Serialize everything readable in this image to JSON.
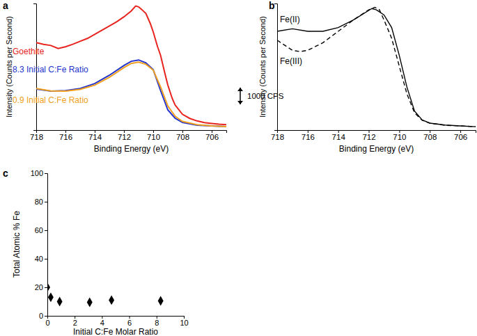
{
  "chart_data": [
    {
      "type": "line",
      "title": "a",
      "x_label": "Binding Energy (eV)",
      "y_label": "Intensity (Counts per Second)",
      "xlim": [
        718,
        705
      ],
      "xticks": [
        718,
        716,
        714,
        712,
        710,
        708,
        706
      ],
      "ylim": [
        0,
        7600
      ],
      "yticks": [],
      "tick_labels": "x",
      "annotations": [
        {
          "text": "1000 CPS",
          "value": 1000
        }
      ],
      "series": [
        {
          "name": "Goethite",
          "color": "#e8231e",
          "line_style": "solid",
          "x": [
            718,
            717.5,
            717,
            716.5,
            716,
            715.5,
            715,
            714.5,
            714,
            713.5,
            713,
            712.5,
            712,
            711.5,
            711.2,
            711,
            710.8,
            710.5,
            710.2,
            710,
            709.7,
            709.5,
            709.2,
            709,
            708.7,
            708.5,
            708,
            707.5,
            707,
            706.5,
            706,
            705.5,
            705
          ],
          "values": [
            5250,
            5150,
            5080,
            4900,
            5000,
            5150,
            5330,
            5500,
            5750,
            6000,
            6250,
            6500,
            6800,
            7150,
            7450,
            7400,
            7250,
            7000,
            6400,
            5900,
            5000,
            4500,
            3400,
            2700,
            1900,
            1500,
            950,
            700,
            550,
            450,
            400,
            350,
            320
          ]
        },
        {
          "name": "8.3 Initial C:Fe Ratio",
          "color": "#2233cc",
          "line_style": "solid",
          "x": [
            718,
            717,
            716,
            715,
            714,
            713,
            712,
            711.5,
            711,
            710.5,
            710,
            709.5,
            709,
            708.5,
            708,
            707,
            706,
            705
          ],
          "values": [
            2460,
            2335,
            2375,
            2500,
            2790,
            3290,
            3880,
            4130,
            4210,
            4040,
            3630,
            2380,
            1210,
            710,
            460,
            290,
            250,
            210
          ]
        },
        {
          "name": "0.9 Initial C:Fe Ratio",
          "color": "#f0a020",
          "line_style": "solid",
          "x": [
            718,
            717,
            716,
            715,
            714,
            713,
            712,
            711.5,
            711,
            710.5,
            710,
            709.5,
            709,
            708.5,
            708,
            707,
            706,
            705
          ],
          "values": [
            2500,
            2350,
            2340,
            2440,
            2700,
            3170,
            3750,
            4000,
            4080,
            3950,
            3600,
            2600,
            1450,
            830,
            520,
            320,
            250,
            210
          ]
        }
      ]
    },
    {
      "type": "line",
      "title": "b",
      "x_label": "Binding Energy (eV)",
      "y_label": "Intensity (Counts per Second)",
      "xlim": [
        718,
        705
      ],
      "xticks": [
        718,
        716,
        714,
        712,
        710,
        708,
        706
      ],
      "ylim": [
        0,
        100
      ],
      "yticks": [],
      "tick_labels": "x",
      "series": [
        {
          "name": "Fe(II)",
          "color": "#000000",
          "line_style": "solid",
          "x": [
            718,
            717,
            716,
            715,
            714,
            713,
            712,
            711.8,
            711.5,
            711,
            710.5,
            710,
            709.5,
            709,
            708.5,
            708,
            707,
            706,
            705
          ],
          "values": [
            78,
            80,
            78,
            78,
            81,
            87,
            94.5,
            96,
            95,
            91,
            81,
            59,
            34,
            15,
            8,
            5.5,
            4,
            3.3,
            2.7
          ]
        },
        {
          "name": "Fe(III)",
          "color": "#000000",
          "line_style": "dashed",
          "x": [
            718,
            717,
            716.5,
            716,
            715,
            714,
            713,
            712,
            711.6,
            711.3,
            711,
            710.5,
            710,
            709.5,
            709,
            708.5,
            708,
            707,
            706,
            705
          ],
          "values": [
            71,
            63,
            62,
            63,
            69,
            78,
            87,
            95,
            97,
            95,
            87,
            72.5,
            50.5,
            28.6,
            13.7,
            7.7,
            5.5,
            3.8,
            3.3,
            2.7
          ]
        }
      ]
    },
    {
      "type": "scatter",
      "title": "c",
      "x_label": "Initial C:Fe Molar Ratio",
      "y_label": "Total Atomic % Fe",
      "xlim": [
        0,
        10
      ],
      "xticks": [
        0,
        2,
        4,
        6,
        8,
        10
      ],
      "ylim": [
        0,
        100
      ],
      "yticks": [
        0,
        20,
        40,
        60,
        80,
        100
      ],
      "marker": "diamond",
      "color": "#000000",
      "x": [
        0,
        0.25,
        0.9,
        3.1,
        4.7,
        8.3
      ],
      "values": [
        20,
        13,
        10,
        9.5,
        11,
        10.5
      ]
    }
  ]
}
